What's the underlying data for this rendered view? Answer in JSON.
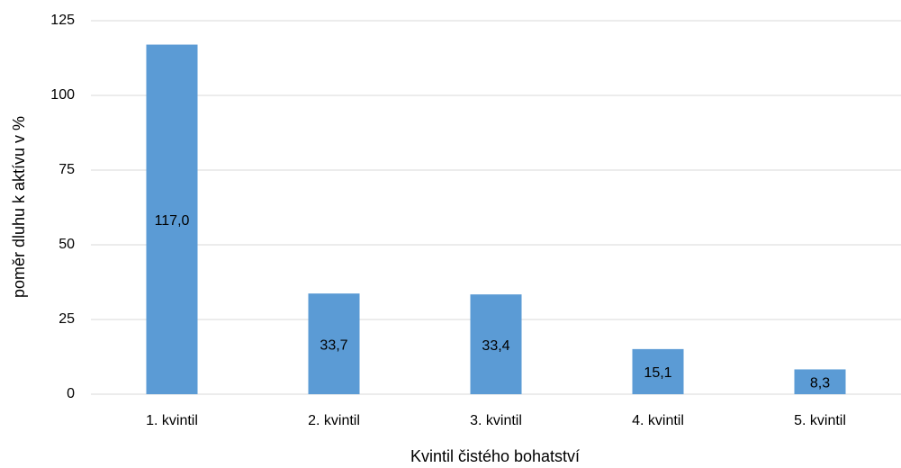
{
  "chart_data": {
    "type": "bar",
    "xlabel": "Kvintil čistého bohatství",
    "ylabel": "poměr dluhu k aktívu v %",
    "categories": [
      "1. kvintil",
      "2. kvintil",
      "3. kvintil",
      "4. kvintil",
      "5. kvintil"
    ],
    "values": [
      117.0,
      33.7,
      33.4,
      15.1,
      8.3
    ],
    "value_labels": [
      "117,0",
      "33,7",
      "33,4",
      "15,1",
      "8,3"
    ],
    "color": "#5b9bd5",
    "ylim": [
      0,
      125
    ],
    "yticks": [
      0,
      25,
      50,
      75,
      100,
      125
    ],
    "grid": true
  }
}
